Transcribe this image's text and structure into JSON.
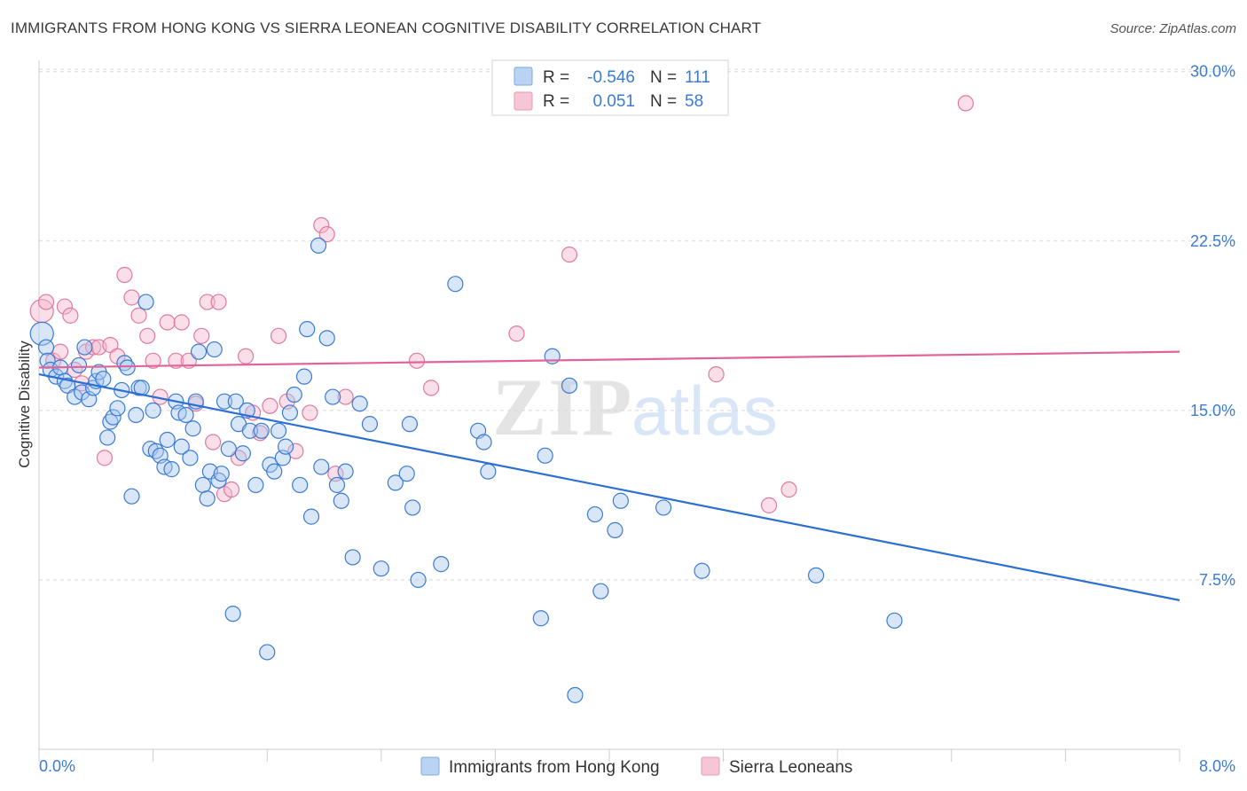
{
  "title": "IMMIGRANTS FROM HONG KONG VS SIERRA LEONEAN COGNITIVE DISABILITY CORRELATION CHART",
  "source": "Source: ZipAtlas.com",
  "watermark": {
    "zip": "ZIP",
    "atlas": "atlas"
  },
  "colors": {
    "blue": "#3b7bd4",
    "blue_fill": "#a9c8f0",
    "blue_line": "#2d6fd0",
    "pink": "#e07aa0",
    "pink_fill": "#f5b8cc",
    "pink_line": "#e0649a",
    "grid": "#d8d8d8",
    "tick_text": "#3b7bd4"
  },
  "legend": {
    "r_label": "R =",
    "n_label": "N =",
    "series": [
      {
        "r": "-0.546",
        "n": "111"
      },
      {
        "r": "0.051",
        "n": "58"
      }
    ]
  },
  "chart_data": {
    "type": "scatter",
    "title": "IMMIGRANTS FROM HONG KONG VS SIERRA LEONEAN COGNITIVE DISABILITY CORRELATION CHART",
    "xlabel": "",
    "ylabel": "Cognitive Disability",
    "xlim": [
      0,
      8
    ],
    "ylim": [
      0,
      30.5
    ],
    "x_tick_labels": [
      "0.0%",
      "8.0%"
    ],
    "y_ticks": [
      7.5,
      15.0,
      22.5,
      30.0
    ],
    "y_tick_labels": [
      "7.5%",
      "15.0%",
      "22.5%",
      "30.0%"
    ],
    "grid": true,
    "legend_placement": "top-center",
    "series": [
      {
        "name": "Immigrants from Hong Kong",
        "trend": {
          "x0": 0.0,
          "y0": 16.6,
          "x1": 8.0,
          "y1": 6.6
        },
        "points": [
          [
            0.02,
            18.4
          ],
          [
            0.05,
            17.8
          ],
          [
            0.06,
            17.2
          ],
          [
            0.08,
            16.8
          ],
          [
            0.12,
            16.5
          ],
          [
            0.15,
            16.9
          ],
          [
            0.18,
            16.3
          ],
          [
            0.2,
            16.1
          ],
          [
            0.25,
            15.6
          ],
          [
            0.28,
            17.0
          ],
          [
            0.3,
            15.8
          ],
          [
            0.32,
            17.8
          ],
          [
            0.35,
            15.5
          ],
          [
            0.38,
            16.0
          ],
          [
            0.4,
            16.3
          ],
          [
            0.42,
            16.7
          ],
          [
            0.45,
            16.4
          ],
          [
            0.48,
            13.8
          ],
          [
            0.5,
            14.5
          ],
          [
            0.52,
            14.7
          ],
          [
            0.55,
            15.1
          ],
          [
            0.58,
            15.9
          ],
          [
            0.6,
            17.1
          ],
          [
            0.62,
            16.9
          ],
          [
            0.65,
            11.2
          ],
          [
            0.68,
            14.8
          ],
          [
            0.7,
            16.0
          ],
          [
            0.72,
            16.0
          ],
          [
            0.75,
            19.8
          ],
          [
            0.78,
            13.3
          ],
          [
            0.8,
            15.0
          ],
          [
            0.82,
            13.2
          ],
          [
            0.85,
            13.0
          ],
          [
            0.88,
            12.5
          ],
          [
            0.9,
            13.7
          ],
          [
            0.93,
            12.4
          ],
          [
            0.96,
            15.4
          ],
          [
            0.98,
            14.9
          ],
          [
            1.0,
            13.4
          ],
          [
            1.03,
            14.8
          ],
          [
            1.06,
            12.9
          ],
          [
            1.08,
            14.2
          ],
          [
            1.1,
            15.4
          ],
          [
            1.12,
            17.6
          ],
          [
            1.15,
            11.7
          ],
          [
            1.18,
            11.1
          ],
          [
            1.2,
            12.3
          ],
          [
            1.23,
            17.7
          ],
          [
            1.26,
            11.9
          ],
          [
            1.28,
            12.2
          ],
          [
            1.3,
            15.4
          ],
          [
            1.33,
            13.3
          ],
          [
            1.36,
            6.0
          ],
          [
            1.38,
            15.4
          ],
          [
            1.4,
            14.4
          ],
          [
            1.43,
            13.1
          ],
          [
            1.46,
            15.0
          ],
          [
            1.48,
            14.1
          ],
          [
            1.52,
            11.7
          ],
          [
            1.56,
            14.1
          ],
          [
            1.6,
            4.3
          ],
          [
            1.62,
            12.6
          ],
          [
            1.65,
            12.3
          ],
          [
            1.68,
            14.1
          ],
          [
            1.71,
            12.9
          ],
          [
            1.73,
            13.4
          ],
          [
            1.76,
            14.9
          ],
          [
            1.79,
            15.7
          ],
          [
            1.83,
            11.7
          ],
          [
            1.86,
            16.5
          ],
          [
            1.88,
            18.6
          ],
          [
            1.91,
            10.3
          ],
          [
            1.96,
            22.3
          ],
          [
            1.98,
            12.5
          ],
          [
            2.02,
            18.2
          ],
          [
            2.06,
            15.6
          ],
          [
            2.09,
            11.7
          ],
          [
            2.12,
            11.0
          ],
          [
            2.15,
            12.3
          ],
          [
            2.2,
            8.5
          ],
          [
            2.25,
            15.3
          ],
          [
            2.32,
            14.4
          ],
          [
            2.4,
            8.0
          ],
          [
            2.5,
            11.8
          ],
          [
            2.58,
            12.2
          ],
          [
            2.6,
            14.4
          ],
          [
            2.62,
            10.7
          ],
          [
            2.66,
            7.5
          ],
          [
            2.82,
            8.2
          ],
          [
            2.92,
            20.6
          ],
          [
            3.08,
            14.1
          ],
          [
            3.12,
            13.6
          ],
          [
            3.15,
            12.3
          ],
          [
            3.52,
            5.8
          ],
          [
            3.55,
            13.0
          ],
          [
            3.6,
            17.4
          ],
          [
            3.72,
            16.1
          ],
          [
            3.76,
            2.4
          ],
          [
            3.9,
            10.4
          ],
          [
            3.94,
            7.0
          ],
          [
            4.04,
            9.7
          ],
          [
            4.08,
            11.0
          ],
          [
            4.38,
            10.7
          ],
          [
            4.65,
            7.9
          ],
          [
            5.45,
            7.7
          ],
          [
            6.0,
            5.7
          ]
        ]
      },
      {
        "name": "Sierra Leoneans",
        "trend": {
          "x0": 0.0,
          "y0": 16.9,
          "x1": 8.0,
          "y1": 17.6
        },
        "points": [
          [
            0.02,
            19.4
          ],
          [
            0.05,
            19.8
          ],
          [
            0.1,
            17.2
          ],
          [
            0.15,
            17.6
          ],
          [
            0.18,
            19.6
          ],
          [
            0.22,
            19.2
          ],
          [
            0.25,
            16.8
          ],
          [
            0.3,
            16.2
          ],
          [
            0.33,
            17.6
          ],
          [
            0.38,
            17.8
          ],
          [
            0.42,
            17.8
          ],
          [
            0.46,
            12.9
          ],
          [
            0.5,
            17.9
          ],
          [
            0.55,
            17.4
          ],
          [
            0.6,
            21.0
          ],
          [
            0.65,
            20.0
          ],
          [
            0.7,
            19.2
          ],
          [
            0.76,
            18.3
          ],
          [
            0.8,
            17.2
          ],
          [
            0.85,
            15.6
          ],
          [
            0.9,
            18.9
          ],
          [
            0.96,
            17.2
          ],
          [
            1.0,
            18.9
          ],
          [
            1.05,
            17.2
          ],
          [
            1.1,
            15.3
          ],
          [
            1.14,
            18.3
          ],
          [
            1.18,
            19.8
          ],
          [
            1.22,
            13.6
          ],
          [
            1.26,
            19.8
          ],
          [
            1.3,
            11.3
          ],
          [
            1.35,
            11.5
          ],
          [
            1.4,
            12.9
          ],
          [
            1.45,
            17.4
          ],
          [
            1.5,
            14.9
          ],
          [
            1.55,
            14.0
          ],
          [
            1.62,
            15.2
          ],
          [
            1.68,
            18.3
          ],
          [
            1.74,
            15.4
          ],
          [
            1.8,
            13.2
          ],
          [
            1.9,
            14.9
          ],
          [
            1.98,
            23.2
          ],
          [
            2.02,
            22.8
          ],
          [
            2.08,
            12.2
          ],
          [
            2.15,
            15.6
          ],
          [
            2.65,
            17.2
          ],
          [
            2.75,
            16.0
          ],
          [
            3.35,
            18.4
          ],
          [
            3.72,
            21.9
          ],
          [
            4.75,
            16.6
          ],
          [
            5.12,
            10.8
          ],
          [
            5.26,
            11.5
          ],
          [
            6.5,
            28.6
          ]
        ]
      }
    ]
  }
}
